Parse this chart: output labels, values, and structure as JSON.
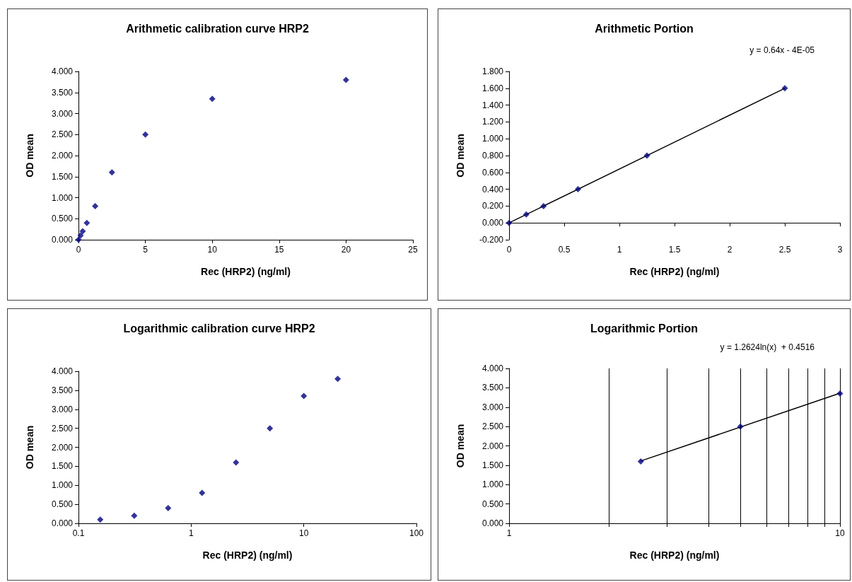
{
  "chart_data": [
    {
      "type": "scatter",
      "title": "Arithmetic calibration curve HRP2",
      "xlabel": "Rec (HRP2) (ng/ml)",
      "ylabel": "OD mean",
      "marker": "diamond",
      "grid": false,
      "x": [
        0,
        0.156,
        0.3125,
        0.625,
        1.25,
        2.5,
        5,
        10,
        20
      ],
      "series": [
        {
          "color": "#000080",
          "values": [
            0,
            0.1,
            0.2,
            0.4,
            0.8,
            1.6,
            2.5,
            3.35,
            3.8
          ]
        }
      ],
      "xlim": [
        0,
        25
      ],
      "xticks": [
        0,
        5,
        10,
        15,
        20,
        25
      ],
      "ylim": [
        0,
        4
      ],
      "yticks": [
        {
          "value": 0,
          "label": "0.000"
        },
        {
          "value": 0.5,
          "label": "0.500"
        },
        {
          "value": 1,
          "label": "1.000"
        },
        {
          "value": 1.5,
          "label": "1.500"
        },
        {
          "value": 2,
          "label": "2.000"
        },
        {
          "value": 2.5,
          "label": "2.500"
        },
        {
          "value": 3,
          "label": "3.000"
        },
        {
          "value": 3.5,
          "label": "3.500"
        },
        {
          "value": 4,
          "label": "4.000"
        }
      ]
    },
    {
      "type": "scatter",
      "title": "Arithmetic Portion",
      "xlabel": "Rec (HRP2) (ng/ml)",
      "ylabel": "OD mean",
      "marker": "diamond",
      "grid": false,
      "annotations": [
        "y = 0.64x - 4E-05"
      ],
      "x": [
        0,
        0.156,
        0.3125,
        0.625,
        1.25,
        2.5
      ],
      "series": [
        {
          "type": "line",
          "color": "#000000",
          "marker": "none",
          "x": [
            0,
            2.5
          ],
          "values": [
            0,
            1.6
          ]
        },
        {
          "color": "#000080",
          "values": [
            0,
            0.1,
            0.2,
            0.4,
            0.8,
            1.6
          ]
        }
      ],
      "xlim": [
        0,
        3
      ],
      "xticks": [
        0,
        0.5,
        1,
        1.5,
        2,
        2.5,
        3
      ],
      "ylim": [
        -0.2,
        1.8
      ],
      "yticks": [
        {
          "value": -0.2,
          "label": "-0.200"
        },
        {
          "value": 0,
          "label": "0.000"
        },
        {
          "value": 0.2,
          "label": "0.200"
        },
        {
          "value": 0.4,
          "label": "0.400"
        },
        {
          "value": 0.6,
          "label": "0.600"
        },
        {
          "value": 0.8,
          "label": "0.800"
        },
        {
          "value": 1,
          "label": "1.000"
        },
        {
          "value": 1.2,
          "label": "1.200"
        },
        {
          "value": 1.4,
          "label": "1.400"
        },
        {
          "value": 1.6,
          "label": "1.600"
        },
        {
          "value": 1.8,
          "label": "1.800"
        }
      ]
    },
    {
      "type": "scatter",
      "title": "Logarithmic calibration curve HRP2",
      "xlabel": "Rec (HRP2) (ng/ml)",
      "ylabel": "OD mean",
      "marker": "diamond",
      "grid": false,
      "log": "x",
      "x": [
        0.156,
        0.3125,
        0.625,
        1.25,
        2.5,
        5,
        10,
        20
      ],
      "series": [
        {
          "color": "#000080",
          "values": [
            0.1,
            0.2,
            0.4,
            0.8,
            1.6,
            2.5,
            3.35,
            3.8
          ]
        }
      ],
      "xlim": [
        0.1,
        100
      ],
      "xticks": [
        0.1,
        1,
        10,
        100
      ],
      "ylim": [
        0,
        4
      ],
      "yticks": [
        {
          "value": 0,
          "label": "0.000"
        },
        {
          "value": 0.5,
          "label": "0.500"
        },
        {
          "value": 1,
          "label": "1.000"
        },
        {
          "value": 1.5,
          "label": "1.500"
        },
        {
          "value": 2,
          "label": "2.000"
        },
        {
          "value": 2.5,
          "label": "2.500"
        },
        {
          "value": 3,
          "label": "3.000"
        },
        {
          "value": 3.5,
          "label": "3.500"
        },
        {
          "value": 4,
          "label": "4.000"
        }
      ]
    },
    {
      "type": "scatter",
      "title": "Logarithmic Portion",
      "xlabel": "Rec (HRP2) (ng/ml)",
      "ylabel": "OD mean",
      "marker": "diamond",
      "grid": "x",
      "log": "x",
      "annotations": [
        "y = 1.2624ln(x)  + 0.4516"
      ],
      "x": [
        2.5,
        5,
        10
      ],
      "series": [
        {
          "type": "line",
          "color": "#000000",
          "marker": "none",
          "x": [
            2.5,
            10
          ],
          "values": [
            1.61,
            3.36
          ]
        },
        {
          "color": "#000080",
          "values": [
            1.6,
            2.5,
            3.35
          ]
        }
      ],
      "xlim": [
        1,
        10
      ],
      "xticks": [
        1,
        {
          "value": 2,
          "label": null
        },
        {
          "value": 3,
          "label": null
        },
        {
          "value": 4,
          "label": null
        },
        {
          "value": 5,
          "label": null
        },
        {
          "value": 6,
          "label": null
        },
        {
          "value": 7,
          "label": null
        },
        {
          "value": 8,
          "label": null
        },
        {
          "value": 9,
          "label": null
        },
        10
      ],
      "ylim": [
        0,
        4
      ],
      "yticks": [
        {
          "value": 0,
          "label": "0.000"
        },
        {
          "value": 0.5,
          "label": "0.500"
        },
        {
          "value": 1,
          "label": "1.000"
        },
        {
          "value": 1.5,
          "label": "1.500"
        },
        {
          "value": 2,
          "label": "2.000"
        },
        {
          "value": 2.5,
          "label": "2.500"
        },
        {
          "value": 3,
          "label": "3.000"
        },
        {
          "value": 3.5,
          "label": "3.500"
        },
        {
          "value": 4,
          "label": "4.000"
        }
      ]
    }
  ]
}
